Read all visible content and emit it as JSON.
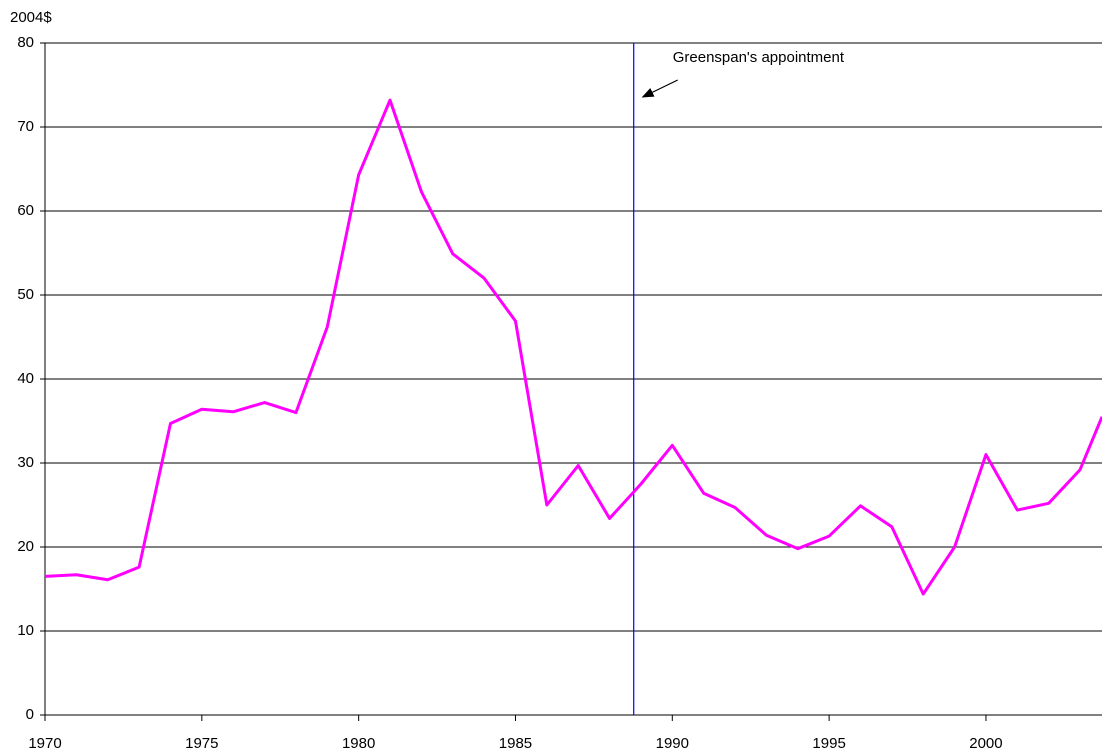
{
  "chart_data": {
    "type": "line",
    "y_label": "2004$",
    "x": [
      1970,
      1971,
      1972,
      1973,
      1974,
      1975,
      1976,
      1977,
      1978,
      1979,
      1980,
      1981,
      1982,
      1983,
      1984,
      1985,
      1986,
      1987,
      1988,
      1989,
      1990,
      1991,
      1992,
      1993,
      1994,
      1995,
      1996,
      1997,
      1998,
      1999,
      2000,
      2001,
      2002,
      2003,
      2003.7
    ],
    "series": [
      {
        "color": "#ff00ff",
        "values": [
          16.5,
          16.7,
          16.1,
          17.6,
          34.7,
          36.4,
          36.1,
          37.2,
          36.0,
          46.2,
          64.3,
          73.2,
          62.3,
          54.9,
          52.0,
          46.9,
          25.0,
          29.7,
          23.4,
          27.5,
          32.1,
          26.4,
          24.7,
          21.4,
          19.8,
          21.3,
          24.9,
          22.4,
          14.4,
          20.0,
          31.0,
          24.4,
          25.2,
          29.2,
          35.5
        ]
      }
    ],
    "xlim": [
      1970,
      2003.7
    ],
    "xticks": [
      1970,
      1975,
      1980,
      1985,
      1990,
      1995,
      2000
    ],
    "ylim": [
      0,
      80
    ],
    "yticks": [
      0,
      10,
      20,
      30,
      40,
      50,
      60,
      70,
      80
    ],
    "grid": true,
    "vline": {
      "x": 1988.77,
      "color": "#0000ff",
      "label": "Greenspan's appointment"
    }
  }
}
